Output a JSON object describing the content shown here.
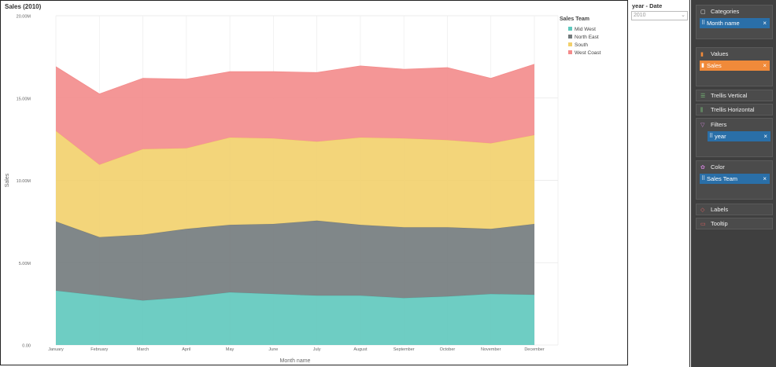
{
  "chart_title": "Sales (2010)",
  "filter": {
    "title": "year - Date",
    "selected": "2010"
  },
  "sidebar": {
    "categories": {
      "label": "Categories",
      "item": "Month name"
    },
    "values": {
      "label": "Values",
      "item": "Sales"
    },
    "trellis_vertical": "Trellis Vertical",
    "trellis_horizontal": "Trellis Horizontal",
    "filters": {
      "label": "Filters",
      "item": "year"
    },
    "color": {
      "label": "Color",
      "item": "Sales Team"
    },
    "labels": "Labels",
    "tooltip": "Tooltip",
    "remove_glyph": "×"
  },
  "colors": {
    "accent_blue": "#2a6fa8",
    "accent_orange": "#f08a3a"
  },
  "chart_data": {
    "type": "area",
    "stacked": true,
    "title": "Sales (2010)",
    "xlabel": "Month name",
    "ylabel": "Sales",
    "ylim": [
      0,
      20000000
    ],
    "yticks": [
      "0.00",
      "5.00M",
      "10.00M",
      "15.00M",
      "20.00M"
    ],
    "ytick_values": [
      0,
      5000000,
      10000000,
      15000000,
      20000000
    ],
    "legend_title": "Sales Team",
    "legend_position": "top-right",
    "grid": true,
    "categories": [
      "January",
      "February",
      "March",
      "April",
      "May",
      "June",
      "July",
      "August",
      "September",
      "October",
      "November",
      "December"
    ],
    "series": [
      {
        "name": "Mid West",
        "color": "#5ec8bd",
        "values": [
          3300000,
          3000000,
          2700000,
          2900000,
          3200000,
          3100000,
          3000000,
          3000000,
          2850000,
          2950000,
          3100000,
          3050000
        ]
      },
      {
        "name": "North East",
        "color": "#727a7c",
        "values": [
          4200000,
          3550000,
          4000000,
          4150000,
          4100000,
          4250000,
          4550000,
          4300000,
          4300000,
          4200000,
          3950000,
          4300000
        ]
      },
      {
        "name": "South",
        "color": "#f2d06b",
        "values": [
          5500000,
          4400000,
          5200000,
          4900000,
          5300000,
          5200000,
          4800000,
          5300000,
          5400000,
          5300000,
          5200000,
          5400000
        ]
      },
      {
        "name": "West Coast",
        "color": "#f38b8b",
        "values": [
          3900000,
          4300000,
          4300000,
          4200000,
          4000000,
          4050000,
          4200000,
          4350000,
          4200000,
          4400000,
          3950000,
          4300000
        ]
      }
    ]
  }
}
